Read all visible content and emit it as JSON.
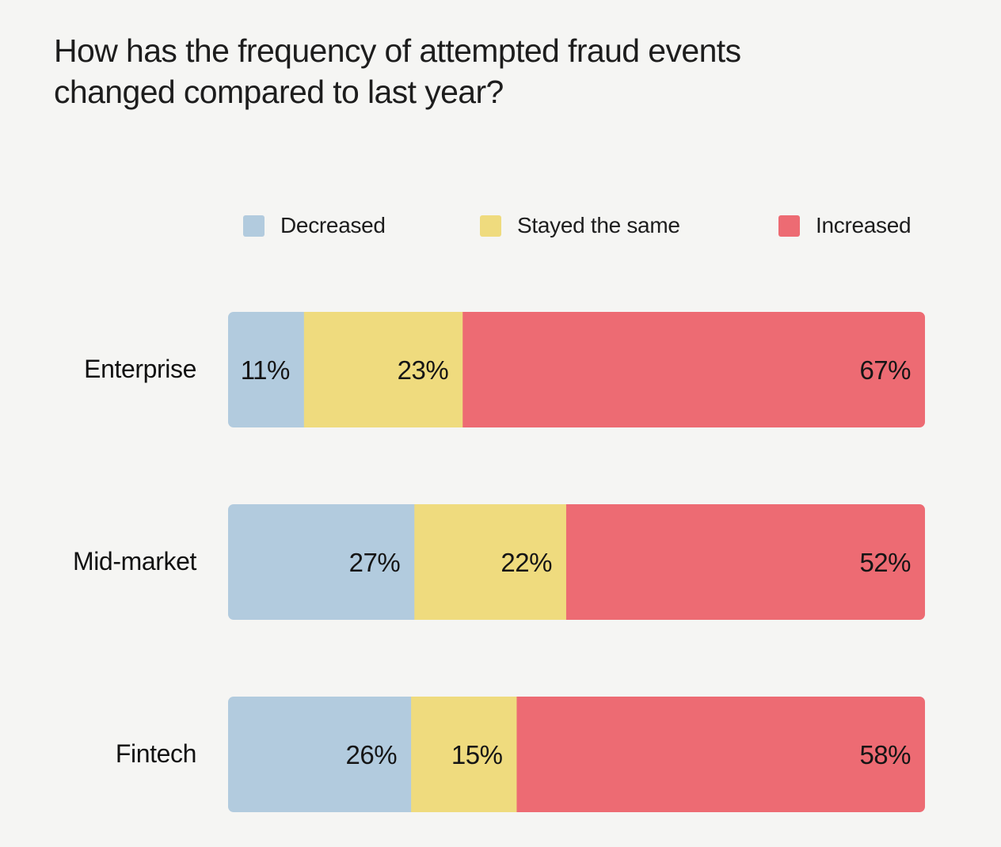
{
  "title": {
    "line1": "How has the frequency of attempted fraud events",
    "line2": "changed compared to last year?"
  },
  "colors": {
    "background": "#f5f5f3",
    "decreased": "#b2cbde",
    "stayed": "#efdb7e",
    "increased": "#ed6b73"
  },
  "chart_data": {
    "type": "bar",
    "orientation": "horizontal",
    "stacked": true,
    "title": "How has the frequency of attempted fraud events changed compared to last year?",
    "categories": [
      "Enterprise",
      "Mid-market",
      "Fintech"
    ],
    "series": [
      {
        "name": "Decreased",
        "values": [
          11,
          27,
          26
        ],
        "labels": [
          "11%",
          "27%",
          "26%"
        ],
        "color": "#b2cbde"
      },
      {
        "name": "Stayed the same",
        "values": [
          23,
          22,
          15
        ],
        "labels": [
          "23%",
          "22%",
          "15%"
        ],
        "color": "#efdb7e"
      },
      {
        "name": "Increased",
        "values": [
          67,
          52,
          58
        ],
        "labels": [
          "67%",
          "52%",
          "58%"
        ],
        "color": "#ed6b73"
      }
    ],
    "legend_position": "top",
    "grid": false
  }
}
